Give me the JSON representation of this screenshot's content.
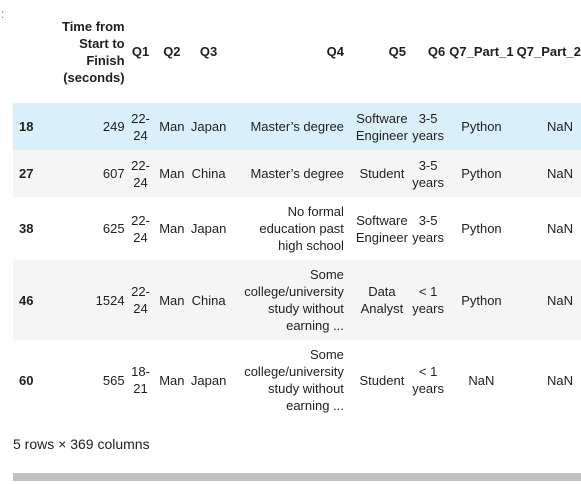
{
  "prompt_mark": ":",
  "columns": {
    "index": "",
    "time": "Time from Start to Finish (seconds)",
    "q1": "Q1",
    "q2": "Q2",
    "q3": "Q3",
    "q4": "Q4",
    "q5": "Q5",
    "q6": "Q6",
    "q7p1": "Q7_Part_1",
    "q7p2": "Q7_Part_2"
  },
  "rows": [
    {
      "index": "18",
      "time": "249",
      "q1": "22-24",
      "q2": "Man",
      "q3": "Japan",
      "q4": "Master’s degree",
      "q5": "Software Engineer",
      "q6": "3-5 years",
      "q7p1": "Python",
      "q7p2": "NaN"
    },
    {
      "index": "27",
      "time": "607",
      "q1": "22-24",
      "q2": "Man",
      "q3": "China",
      "q4": "Master’s degree",
      "q5": "Student",
      "q6": "3-5 years",
      "q7p1": "Python",
      "q7p2": "NaN"
    },
    {
      "index": "38",
      "time": "625",
      "q1": "22-24",
      "q2": "Man",
      "q3": "Japan",
      "q4": "No formal education past high school",
      "q5": "Software Engineer",
      "q6": "3-5 years",
      "q7p1": "Python",
      "q7p2": "NaN"
    },
    {
      "index": "46",
      "time": "1524",
      "q1": "22-24",
      "q2": "Man",
      "q3": "China",
      "q4": "Some college/university study without earning ...",
      "q5": "Data Analyst",
      "q6": "< 1 years",
      "q7p1": "Python",
      "q7p2": "NaN"
    },
    {
      "index": "60",
      "time": "565",
      "q1": "18-21",
      "q2": "Man",
      "q3": "Japan",
      "q4": "Some college/university study without earning ...",
      "q5": "Student",
      "q6": "< 1 years",
      "q7p1": "NaN",
      "q7p2": "NaN"
    }
  ],
  "summary": "5 rows × 369 columns",
  "colors": {
    "hover_row": "#d9f0fb",
    "alt_row": "#f5f5f5",
    "scrollbar": "#c1c1c1"
  }
}
